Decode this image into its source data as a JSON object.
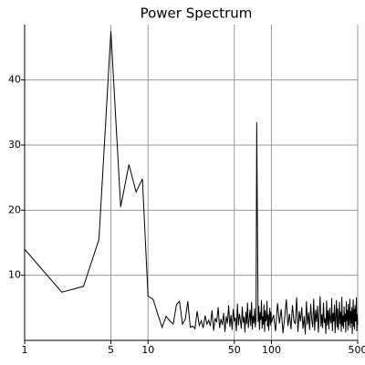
{
  "chart_data": {
    "type": "line",
    "title": "Power Spectrum",
    "log_x": true,
    "grid": true,
    "color": "#000000",
    "xlim": [
      1,
      500
    ],
    "ylim": [
      0,
      48.5
    ],
    "xticks": [
      1,
      5,
      10,
      50,
      100,
      500
    ],
    "yticks": [
      10,
      20,
      30,
      40
    ],
    "x": [
      1,
      2,
      3,
      4,
      5,
      6,
      7,
      8,
      9,
      10,
      11,
      12,
      13,
      14,
      15,
      16,
      17,
      18,
      19,
      20,
      21,
      22,
      23,
      24,
      25,
      26,
      27,
      28,
      29,
      30,
      31,
      32,
      33,
      34,
      35,
      36,
      37,
      38,
      39,
      40,
      41,
      42,
      43,
      44,
      45,
      46,
      47,
      48,
      49,
      50,
      51,
      52,
      53,
      54,
      55,
      56,
      57,
      58,
      59,
      60,
      61,
      62,
      63,
      64,
      65,
      66,
      67,
      68,
      69,
      70,
      71,
      72,
      73,
      74,
      75,
      76,
      77,
      78,
      79,
      80,
      81,
      82,
      83,
      84,
      85,
      86,
      87,
      88,
      89,
      90,
      91,
      92,
      93,
      94,
      95,
      96,
      97,
      98,
      99,
      100,
      104,
      108,
      112,
      116,
      120,
      124,
      128,
      132,
      136,
      140,
      144,
      148,
      152,
      156,
      160,
      164,
      168,
      172,
      176,
      180,
      184,
      188,
      192,
      196,
      200,
      204,
      208,
      212,
      216,
      220,
      224,
      228,
      232,
      236,
      240,
      244,
      248,
      252,
      256,
      260,
      264,
      268,
      272,
      276,
      280,
      284,
      288,
      292,
      296,
      300,
      304,
      308,
      312,
      316,
      320,
      324,
      328,
      332,
      336,
      340,
      344,
      348,
      352,
      356,
      360,
      364,
      368,
      372,
      376,
      380,
      384,
      388,
      392,
      396,
      400,
      404,
      408,
      412,
      416,
      420,
      424,
      428,
      432,
      436,
      440,
      444,
      448,
      452,
      456,
      460,
      464,
      468,
      472,
      476,
      480,
      484,
      488,
      492,
      496,
      500
    ],
    "y": [
      14,
      7.4,
      8.3,
      15.5,
      47.5,
      20.5,
      27,
      22.8,
      24.8,
      6.8,
      6.3,
      4,
      2,
      3.7,
      3,
      2.5,
      5.5,
      6,
      2.5,
      3.2,
      6,
      2,
      2.2,
      1.8,
      4.5,
      2.3,
      3,
      1.9,
      3.8,
      2.5,
      3.1,
      2.2,
      4.6,
      1.5,
      3.4,
      2.8,
      5.1,
      1.9,
      3.3,
      2.4,
      4.2,
      1.3,
      3.7,
      2.6,
      5.4,
      2.1,
      3.9,
      1.6,
      4.8,
      2.9,
      3.5,
      1.4,
      5.6,
      2.3,
      4.1,
      3.0,
      1.8,
      5.2,
      2.7,
      3.6,
      1.2,
      4.4,
      2.5,
      5.8,
      1.9,
      3.2,
      4.7,
      2.2,
      5.9,
      1.7,
      3.8,
      2.6,
      4.9,
      2.0,
      3.4,
      33.5,
      17.8,
      2.8,
      5.3,
      1.6,
      4.3,
      3.1,
      6.2,
      1.8,
      3.7,
      2.4,
      5.5,
      1.3,
      4.6,
      2.9,
      3.3,
      6.1,
      2.1,
      4.0,
      1.5,
      3.6,
      5.0,
      2.3,
      4.4,
      2.7,
      3.9,
      1.4,
      5.7,
      2.6,
      4.8,
      1.1,
      3.5,
      6.3,
      2.2,
      4.1,
      1.7,
      5.4,
      3.0,
      2.5,
      6.6,
      1.3,
      4.5,
      2.9,
      5.1,
      1.8,
      3.7,
      0.9,
      6.0,
      2.4,
      4.3,
      1.6,
      5.6,
      3.2,
      2.0,
      6.4,
      1.5,
      4.7,
      2.8,
      5.3,
      1.2,
      3.9,
      6.8,
      2.1,
      4.0,
      1.9,
      5.8,
      2.7,
      3.4,
      1.0,
      6.1,
      2.3,
      4.6,
      1.7,
      5.0,
      3.1,
      2.6,
      6.5,
      1.4,
      4.2,
      2.9,
      5.5,
      1.1,
      3.6,
      6.2,
      2.0,
      4.9,
      1.6,
      3.3,
      5.9,
      2.5,
      4.4,
      1.3,
      6.7,
      2.2,
      3.8,
      1.8,
      5.2,
      2.8,
      4.1,
      1.2,
      6.0,
      3.0,
      4.7,
      1.5,
      5.6,
      2.3,
      3.5,
      6.4,
      1.9,
      4.5,
      2.6,
      5.1,
      1.0,
      3.9,
      6.3,
      2.1,
      4.8,
      1.7,
      5.4,
      2.9,
      3.2,
      6.6,
      1.4,
      4.0,
      2.4
    ]
  }
}
